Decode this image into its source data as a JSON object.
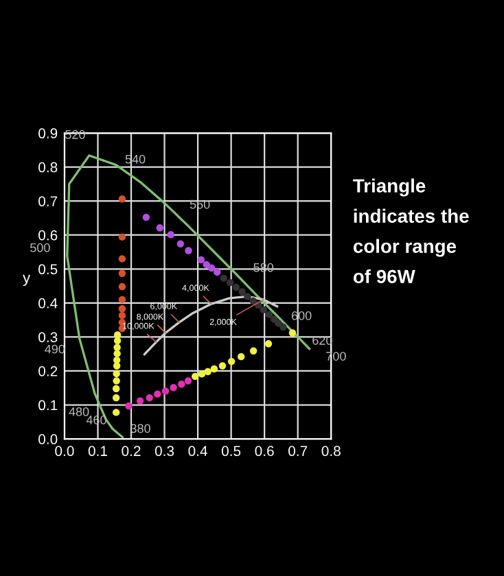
{
  "chart_data": {
    "type": "scatter",
    "ylabel": "y",
    "xlim": [
      0,
      0.8
    ],
    "ylim": [
      0,
      0.9
    ],
    "xticks": [
      {
        "value": 0,
        "label": "0.0"
      },
      0.1,
      0.2,
      0.3,
      0.4,
      0.5,
      0.6,
      0.7,
      0.8
    ],
    "yticks": [
      {
        "value": 0,
        "label": "0.0"
      },
      0.1,
      0.2,
      0.3,
      0.4,
      0.5,
      0.6,
      0.7,
      0.8,
      0.9
    ],
    "grid": true,
    "marker": "circle",
    "series": [
      {
        "type": "line",
        "marker": "none",
        "color": "#7fbf6f",
        "x": [
          0.174,
          0.144,
          0.124,
          0.091,
          0.045,
          0.008,
          0.014,
          0.074,
          0.155,
          0.23,
          0.302,
          0.373,
          0.444,
          0.513,
          0.575,
          0.627,
          0.692,
          0.735
        ],
        "values": [
          0.005,
          0.03,
          0.058,
          0.133,
          0.295,
          0.538,
          0.75,
          0.834,
          0.806,
          0.754,
          0.692,
          0.625,
          0.555,
          0.487,
          0.424,
          0.373,
          0.308,
          0.265
        ]
      },
      {
        "type": "line",
        "marker": "none",
        "color": "#cccccc",
        "x": [
          0.24,
          0.275,
          0.303,
          0.344,
          0.385,
          0.44,
          0.495,
          0.549,
          0.597,
          0.638
        ],
        "values": [
          0.249,
          0.285,
          0.312,
          0.343,
          0.37,
          0.397,
          0.414,
          0.419,
          0.41,
          0.39
        ]
      },
      {
        "color": "#d9502e",
        "x": [
          0.173,
          0.173,
          0.173,
          0.173,
          0.173,
          0.173,
          0.173,
          0.173,
          0.173,
          0.173
        ],
        "values": [
          0.706,
          0.594,
          0.53,
          0.487,
          0.448,
          0.41,
          0.383,
          0.363,
          0.343,
          0.325
        ]
      },
      {
        "color": "#f0f040",
        "x": [
          0.159,
          0.159,
          0.158,
          0.158,
          0.157,
          0.157,
          0.156,
          0.156,
          0.155,
          0.155,
          0.155
        ],
        "values": [
          0.306,
          0.289,
          0.269,
          0.251,
          0.232,
          0.215,
          0.192,
          0.171,
          0.148,
          0.121,
          0.078
        ]
      },
      {
        "color": "#e030b0",
        "x": [
          0.193,
          0.227,
          0.255,
          0.279,
          0.303,
          0.327,
          0.351,
          0.371
        ],
        "values": [
          0.097,
          0.112,
          0.121,
          0.132,
          0.141,
          0.151,
          0.161,
          0.171
        ]
      },
      {
        "color": "#f0f040",
        "x": [
          0.392,
          0.412,
          0.43,
          0.449,
          0.474,
          0.501,
          0.53,
          0.567,
          0.612,
          0.684
        ],
        "values": [
          0.184,
          0.191,
          0.198,
          0.206,
          0.215,
          0.228,
          0.242,
          0.259,
          0.28,
          0.312
        ]
      },
      {
        "color": "#b050e0",
        "x": [
          0.245,
          0.286,
          0.319,
          0.348,
          0.372,
          0.41,
          0.426,
          0.441,
          0.458
        ],
        "values": [
          0.652,
          0.621,
          0.601,
          0.574,
          0.554,
          0.527,
          0.513,
          0.503,
          0.491
        ]
      },
      {
        "color": "#333333",
        "x": [
          0.478,
          0.497,
          0.515,
          0.533,
          0.549,
          0.566,
          0.581,
          0.597,
          0.614,
          0.629,
          0.642,
          0.656
        ],
        "values": [
          0.473,
          0.46,
          0.446,
          0.433,
          0.419,
          0.406,
          0.394,
          0.38,
          0.366,
          0.352,
          0.34,
          0.329
        ]
      }
    ],
    "annotations": [
      {
        "text": "520",
        "x": 0.074,
        "y": 0.834
      },
      {
        "text": "540",
        "x": 0.23,
        "y": 0.754
      },
      {
        "text": "560",
        "x": 0.373,
        "y": 0.625
      },
      {
        "text": "580",
        "x": 0.513,
        "y": 0.487
      },
      {
        "text": "600",
        "x": 0.627,
        "y": 0.373
      },
      {
        "text": "620",
        "x": 0.692,
        "y": 0.308
      },
      {
        "text": "700",
        "x": 0.735,
        "y": 0.265
      },
      {
        "text": "500",
        "x": 0.008,
        "y": 0.538
      },
      {
        "text": "490",
        "x": 0.045,
        "y": 0.295
      },
      {
        "text": "480",
        "x": 0.091,
        "y": 0.133
      },
      {
        "text": "460",
        "x": 0.144,
        "y": 0.03
      },
      {
        "text": "380",
        "x": 0.174,
        "y": 0.005
      },
      {
        "text": "4,000K",
        "x": 0.44,
        "y": 0.397
      },
      {
        "text": "6,000K",
        "x": 0.344,
        "y": 0.343
      },
      {
        "text": "8,000K",
        "x": 0.303,
        "y": 0.312
      },
      {
        "text": "10,000K",
        "x": 0.275,
        "y": 0.285
      },
      {
        "text": "2,000K",
        "x": 0.597,
        "y": 0.41
      },
      "Triangle\nindicates the\ncolor range\nof 96W"
    ]
  }
}
